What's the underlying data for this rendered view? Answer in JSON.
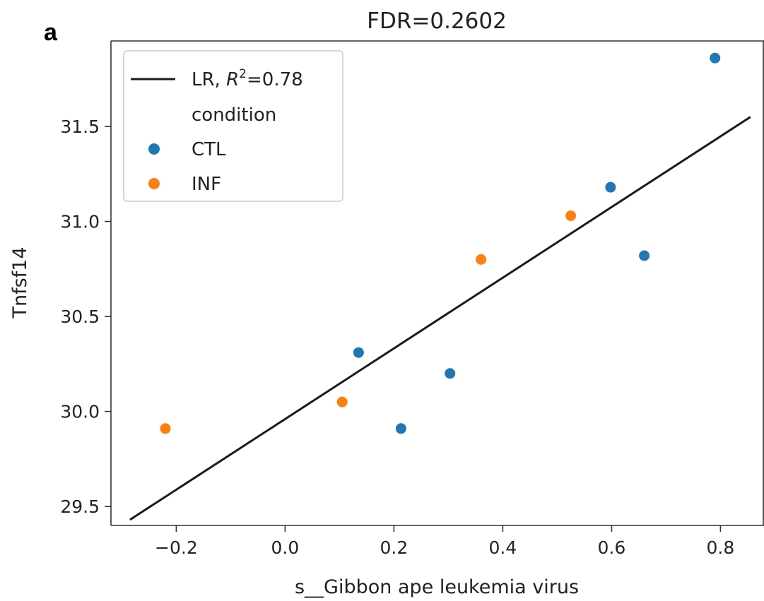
{
  "panel_label": "a",
  "colors": {
    "CTL": "#1f77b4",
    "INF": "#ff7f0e",
    "regression": "#1a1a1a",
    "axis": "#333333"
  },
  "chart_data": {
    "type": "scatter",
    "title": "FDR=0.2602",
    "xlabel": "s__Gibbon ape leukemia virus",
    "ylabel": "Tnfsf14",
    "xlim": [
      -0.32,
      0.88
    ],
    "ylim": [
      29.4,
      31.95
    ],
    "xticks": [
      -0.2,
      0.0,
      0.2,
      0.4,
      0.6,
      0.8
    ],
    "xtick_labels": [
      "−0.2",
      "0.0",
      "0.2",
      "0.4",
      "0.6",
      "0.8"
    ],
    "yticks": [
      29.5,
      30.0,
      30.5,
      31.0,
      31.5
    ],
    "ytick_labels": [
      "29.5",
      "30.0",
      "30.5",
      "31.0",
      "31.5"
    ],
    "grid": false,
    "legend_position": "top-left",
    "legend": {
      "line_label_prefix": "LR, ",
      "line_label_r2": "R",
      "line_label_sup": "2",
      "line_label_suffix": "=0.78",
      "group_title": "condition"
    },
    "regression_line": {
      "name": "LR",
      "r2": 0.78,
      "x": [
        -0.285,
        0.855
      ],
      "y": [
        29.43,
        31.55
      ]
    },
    "series": [
      {
        "name": "CTL",
        "points": [
          {
            "x": 0.135,
            "y": 30.31
          },
          {
            "x": 0.213,
            "y": 29.91
          },
          {
            "x": 0.303,
            "y": 30.2
          },
          {
            "x": 0.598,
            "y": 31.18
          },
          {
            "x": 0.66,
            "y": 30.82
          },
          {
            "x": 0.79,
            "y": 31.86
          }
        ]
      },
      {
        "name": "INF",
        "points": [
          {
            "x": -0.22,
            "y": 29.91
          },
          {
            "x": 0.105,
            "y": 30.05
          },
          {
            "x": 0.36,
            "y": 30.8
          },
          {
            "x": 0.525,
            "y": 31.03
          }
        ]
      }
    ]
  }
}
